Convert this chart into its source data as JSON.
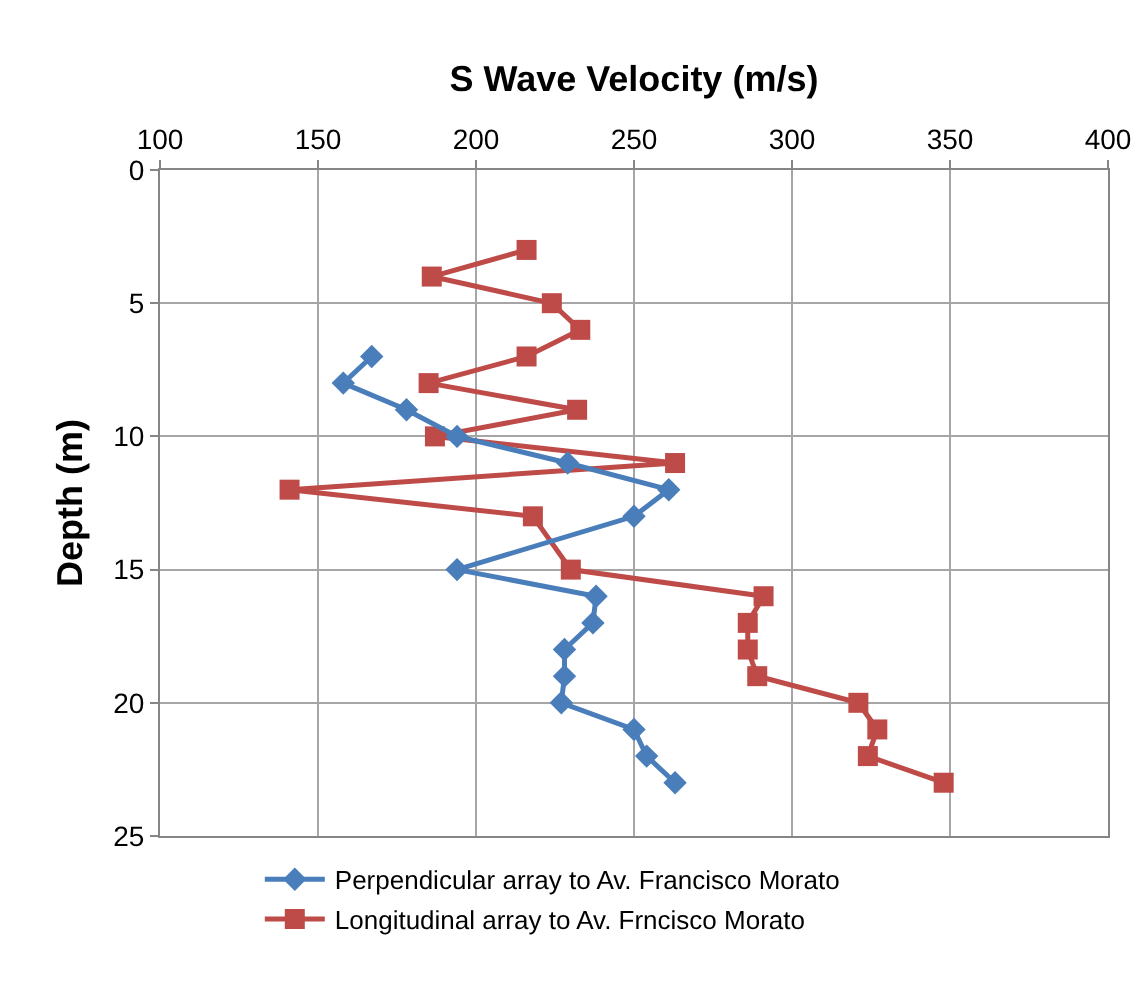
{
  "chart_data": {
    "type": "line",
    "xlabel": "S Wave Velocity (m/s)",
    "ylabel": "Depth (m)",
    "xlim": [
      100,
      400
    ],
    "xticks": [
      100,
      150,
      200,
      250,
      300,
      350,
      400
    ],
    "ylim": [
      25,
      0
    ],
    "yticks": [
      0,
      5,
      10,
      15,
      20,
      25
    ],
    "grid": true,
    "legend": "bottom",
    "line_style": "solid",
    "series": [
      {
        "name": "Perpendicular array to Av. Francisco Morato",
        "color": "#4a7ebb",
        "marker": "diamond",
        "x": [
          167,
          158,
          178,
          194,
          229,
          261,
          250,
          194,
          238,
          237,
          228,
          228,
          227,
          250,
          254,
          263
        ],
        "values": [
          7,
          8,
          9,
          10,
          11,
          12,
          13,
          15,
          16,
          17,
          18,
          19,
          20,
          21,
          22,
          23
        ]
      },
      {
        "name": "Longitudinal array to Av. Frncisco Morato",
        "color": "#be4b48",
        "marker": "square",
        "x": [
          216,
          186,
          224,
          233,
          216,
          185,
          232,
          187,
          263,
          141,
          218,
          230,
          291,
          286,
          286,
          289,
          321,
          327,
          324,
          348
        ],
        "values": [
          3,
          4,
          5,
          6,
          7,
          8,
          9,
          10,
          11,
          12,
          13,
          15,
          16,
          17,
          18,
          19,
          20,
          21,
          22,
          23
        ]
      }
    ]
  }
}
